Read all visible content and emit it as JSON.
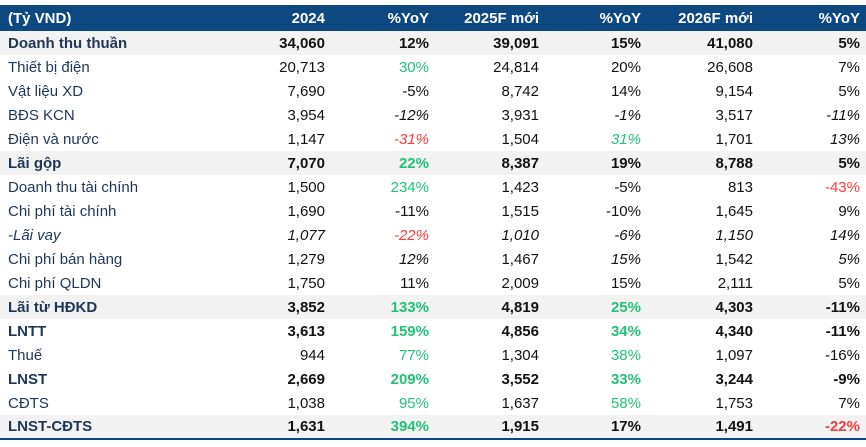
{
  "palette": {
    "header_bg": "#0e4881",
    "header_text": "#ffffff",
    "positive_green": "#21c17a",
    "negative_red": "#fa3c3c",
    "shaded_row_bg": "#f2f2f2",
    "label_text": "#1f3656",
    "number_text": "#121212"
  },
  "table": {
    "unit_label": "(Tỷ VND)",
    "columns": [
      "2024",
      "%YoY",
      "2025F mới",
      "%YoY",
      "2026F mới",
      "%YoY"
    ],
    "rows": [
      {
        "label": "Doanh thu thuần",
        "bold": true,
        "shaded": true,
        "cells": [
          {
            "v": "34,060"
          },
          {
            "v": "12%"
          },
          {
            "v": "39,091"
          },
          {
            "v": "15%"
          },
          {
            "v": "41,080"
          },
          {
            "v": "5%"
          }
        ]
      },
      {
        "label": "Thiết bị điện",
        "bold": false,
        "shaded": false,
        "cells": [
          {
            "v": "20,713"
          },
          {
            "v": "30%",
            "c": "green"
          },
          {
            "v": "24,814"
          },
          {
            "v": "20%"
          },
          {
            "v": "26,608"
          },
          {
            "v": "7%"
          }
        ]
      },
      {
        "label": "Vật liệu XD",
        "bold": false,
        "shaded": false,
        "cells": [
          {
            "v": "7,690"
          },
          {
            "v": "-5%"
          },
          {
            "v": "8,742"
          },
          {
            "v": "14%"
          },
          {
            "v": "9,154"
          },
          {
            "v": "5%"
          }
        ]
      },
      {
        "label": "BĐS KCN",
        "bold": false,
        "shaded": false,
        "cells": [
          {
            "v": "3,954"
          },
          {
            "v": "-12%",
            "i": true
          },
          {
            "v": "3,931"
          },
          {
            "v": "-1%",
            "i": true
          },
          {
            "v": "3,517"
          },
          {
            "v": "-11%",
            "i": true
          }
        ]
      },
      {
        "label": "Điện và nước",
        "bold": false,
        "shaded": false,
        "cells": [
          {
            "v": "1,147"
          },
          {
            "v": "-31%",
            "c": "red",
            "i": true
          },
          {
            "v": "1,504"
          },
          {
            "v": "31%",
            "c": "green",
            "i": true
          },
          {
            "v": "1,701"
          },
          {
            "v": "13%",
            "i": true
          }
        ]
      },
      {
        "label": "Lãi gộp",
        "bold": true,
        "shaded": true,
        "cells": [
          {
            "v": "7,070"
          },
          {
            "v": "22%",
            "c": "green"
          },
          {
            "v": "8,387"
          },
          {
            "v": "19%"
          },
          {
            "v": "8,788"
          },
          {
            "v": "5%"
          }
        ]
      },
      {
        "label": "Doanh thu tài chính",
        "bold": false,
        "shaded": false,
        "cells": [
          {
            "v": "1,500"
          },
          {
            "v": "234%",
            "c": "green"
          },
          {
            "v": "1,423"
          },
          {
            "v": "-5%"
          },
          {
            "v": "813"
          },
          {
            "v": "-43%",
            "c": "red"
          }
        ]
      },
      {
        "label": "Chi phí tài chính",
        "bold": false,
        "shaded": false,
        "cells": [
          {
            "v": "1,690"
          },
          {
            "v": "-11%"
          },
          {
            "v": "1,515"
          },
          {
            "v": "-10%"
          },
          {
            "v": "1,645"
          },
          {
            "v": "9%"
          }
        ]
      },
      {
        "label": "-Lãi vay",
        "bold": false,
        "shaded": false,
        "italic": true,
        "cells": [
          {
            "v": "1,077",
            "i": true
          },
          {
            "v": "-22%",
            "c": "red",
            "i": true
          },
          {
            "v": "1,010",
            "i": true
          },
          {
            "v": "-6%",
            "i": true
          },
          {
            "v": "1,150",
            "i": true
          },
          {
            "v": "14%",
            "i": true
          }
        ]
      },
      {
        "label": "Chi phí bán hàng",
        "bold": false,
        "shaded": false,
        "cells": [
          {
            "v": "1,279"
          },
          {
            "v": "12%",
            "i": true
          },
          {
            "v": "1,467"
          },
          {
            "v": "15%",
            "i": true
          },
          {
            "v": "1,542"
          },
          {
            "v": "5%",
            "i": true
          }
        ]
      },
      {
        "label": "Chi phí QLDN",
        "bold": false,
        "shaded": false,
        "cells": [
          {
            "v": "1,750"
          },
          {
            "v": "11%"
          },
          {
            "v": "2,009"
          },
          {
            "v": "15%"
          },
          {
            "v": "2,111"
          },
          {
            "v": "5%"
          }
        ]
      },
      {
        "label": "Lãi từ HĐKD",
        "bold": true,
        "shaded": true,
        "cells": [
          {
            "v": "3,852"
          },
          {
            "v": "133%",
            "c": "green"
          },
          {
            "v": "4,819"
          },
          {
            "v": "25%",
            "c": "green"
          },
          {
            "v": "4,303"
          },
          {
            "v": "-11%"
          }
        ]
      },
      {
        "label": "LNTT",
        "bold": true,
        "shaded": false,
        "cells": [
          {
            "v": "3,613"
          },
          {
            "v": "159%",
            "c": "green"
          },
          {
            "v": "4,856"
          },
          {
            "v": "34%",
            "c": "green"
          },
          {
            "v": "4,340"
          },
          {
            "v": "-11%"
          }
        ]
      },
      {
        "label": "Thuế",
        "bold": false,
        "shaded": false,
        "cells": [
          {
            "v": "944"
          },
          {
            "v": "77%",
            "c": "green"
          },
          {
            "v": "1,304"
          },
          {
            "v": "38%",
            "c": "green"
          },
          {
            "v": "1,097"
          },
          {
            "v": "-16%"
          }
        ]
      },
      {
        "label": "LNST",
        "bold": true,
        "shaded": false,
        "cells": [
          {
            "v": "2,669"
          },
          {
            "v": "209%",
            "c": "green"
          },
          {
            "v": "3,552"
          },
          {
            "v": "33%",
            "c": "green"
          },
          {
            "v": "3,244"
          },
          {
            "v": "-9%"
          }
        ]
      },
      {
        "label": "CĐTS",
        "bold": false,
        "shaded": false,
        "cells": [
          {
            "v": "1,038"
          },
          {
            "v": "95%",
            "c": "green"
          },
          {
            "v": "1,637"
          },
          {
            "v": "58%",
            "c": "green"
          },
          {
            "v": "1,753"
          },
          {
            "v": "7%"
          }
        ]
      },
      {
        "label": "LNST-CĐTS",
        "bold": true,
        "shaded": true,
        "cells": [
          {
            "v": "1,631"
          },
          {
            "v": "394%",
            "c": "green"
          },
          {
            "v": "1,915"
          },
          {
            "v": "17%"
          },
          {
            "v": "1,491"
          },
          {
            "v": "-22%",
            "c": "red"
          }
        ]
      }
    ]
  }
}
